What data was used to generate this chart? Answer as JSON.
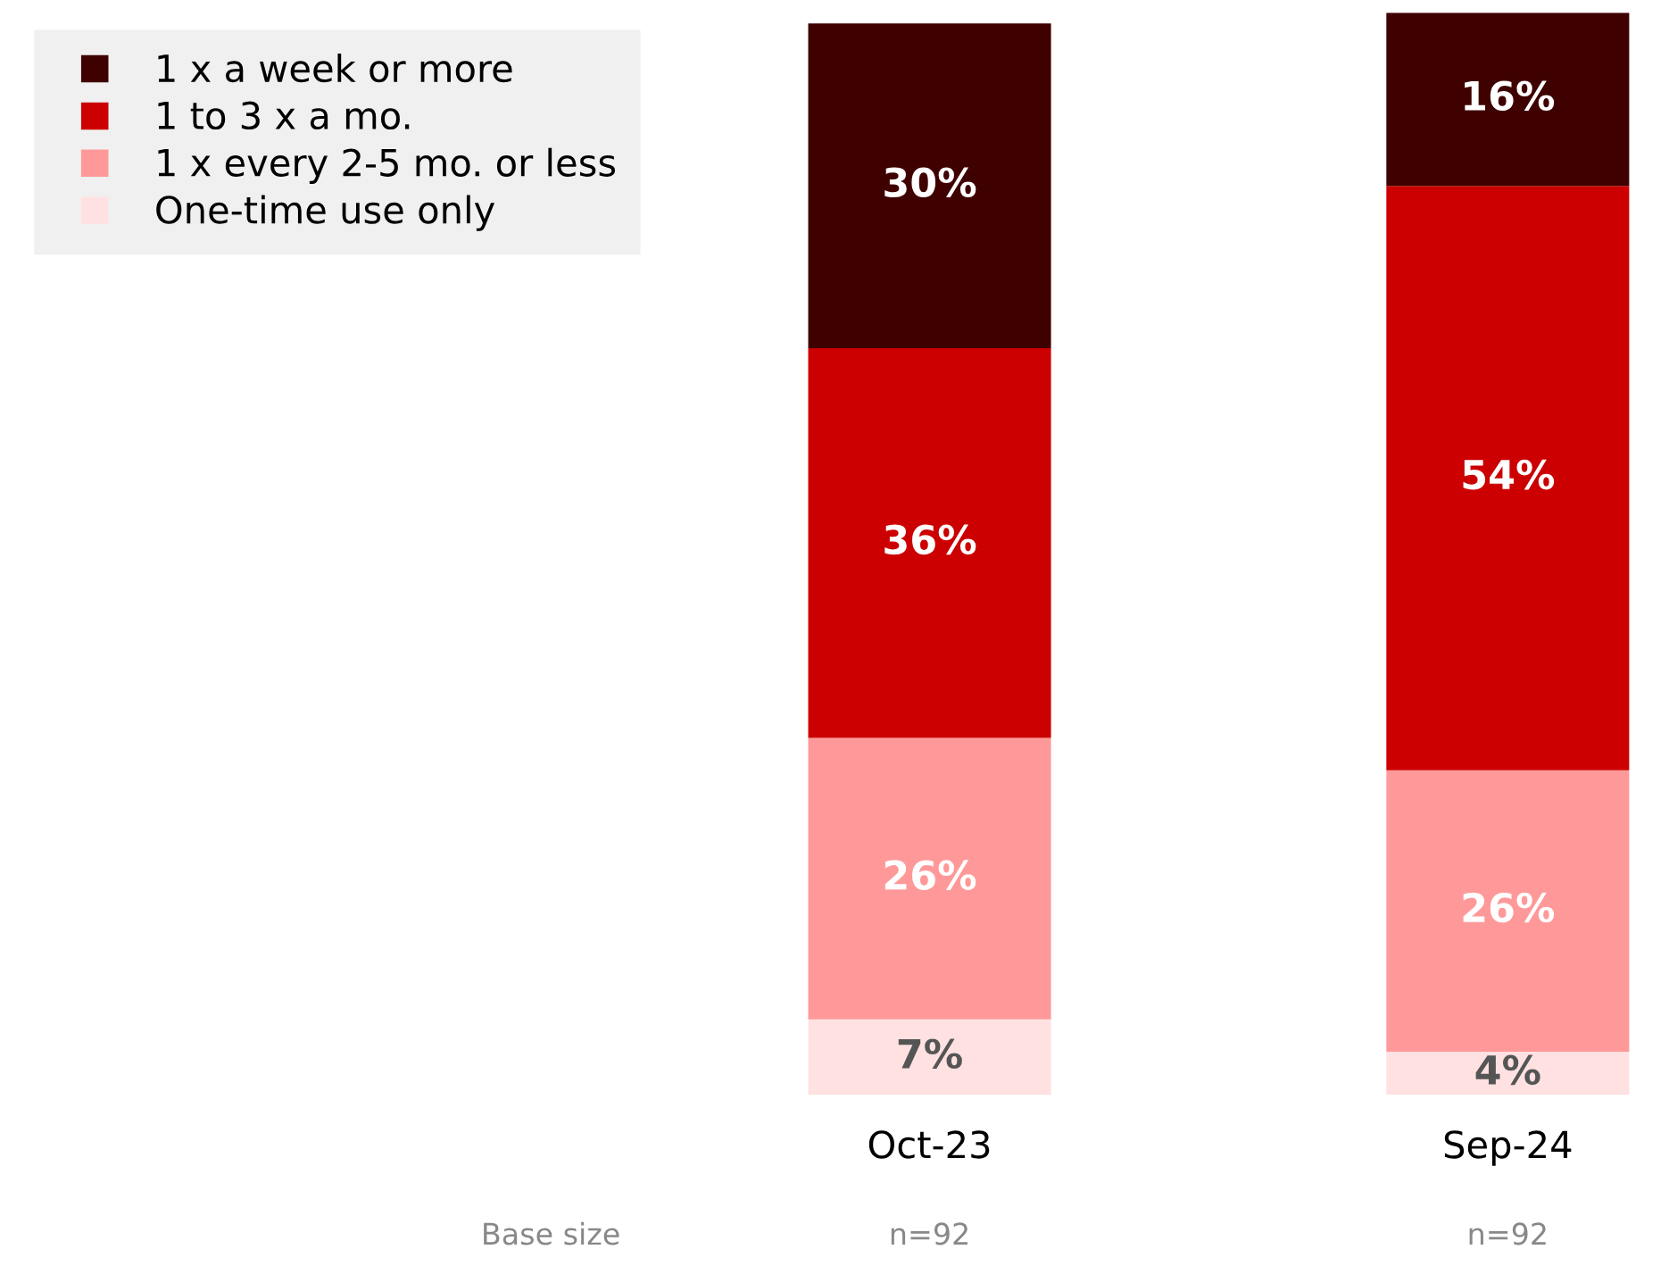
{
  "chart_data": {
    "type": "bar",
    "stacked": true,
    "categories": [
      "Oct-23",
      "Sep-24"
    ],
    "series": [
      {
        "name": "One-time use only",
        "color": "#ffe1e1",
        "values": [
          7,
          4
        ],
        "value_labels": [
          "7%",
          "4%"
        ]
      },
      {
        "name": "1 x every 2-5 mo. or less",
        "color": "#ff9999",
        "values": [
          26,
          26
        ],
        "value_labels": [
          "26%",
          "26%"
        ]
      },
      {
        "name": "1 to 3 x a mo.",
        "color": "#cc0000",
        "values": [
          36,
          54
        ],
        "value_labels": [
          "36%",
          "54%"
        ]
      },
      {
        "name": "1 x a week or more",
        "color": "#3f0000",
        "values": [
          30,
          16
        ],
        "value_labels": [
          "30%",
          "16%"
        ]
      }
    ],
    "legend": "top left",
    "grid": false,
    "annotations": [
      "Base size",
      "n=92",
      "n=92"
    ]
  }
}
